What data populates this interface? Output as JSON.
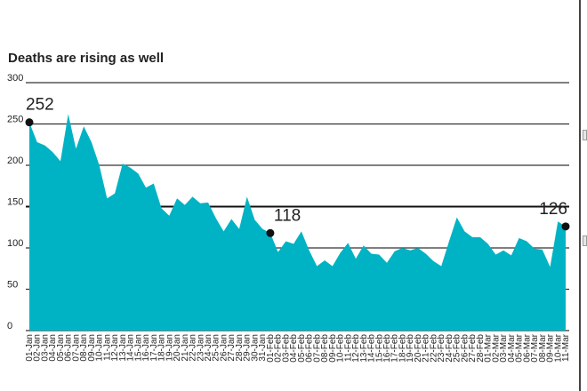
{
  "chart_data": {
    "type": "area",
    "title": "Deaths are rising as well",
    "xlabel": "",
    "ylabel": "",
    "ylim": [
      0,
      300
    ],
    "yticks": [
      0,
      50,
      100,
      150,
      200,
      250,
      300
    ],
    "grid": "horizontal",
    "legend": "none",
    "colors": {
      "fill": "#00b3c4",
      "grid_major": "#111111",
      "grid_minor": "#333333",
      "text": "#222222"
    },
    "x": [
      "01-Jan",
      "02-Jan",
      "03-Jan",
      "04-Jan",
      "05-Jan",
      "06-Jan",
      "07-Jan",
      "08-Jan",
      "09-Jan",
      "10-Jan",
      "11-Jan",
      "12-Jan",
      "13-Jan",
      "14-Jan",
      "15-Jan",
      "16-Jan",
      "17-Jan",
      "18-Jan",
      "19-Jan",
      "20-Jan",
      "21-Jan",
      "22-Jan",
      "23-Jan",
      "24-Jan",
      "25-Jan",
      "26-Jan",
      "27-Jan",
      "28-Jan",
      "29-Jan",
      "30-Jan",
      "31-Jan",
      "01-Feb",
      "02-Feb",
      "03-Feb",
      "04-Feb",
      "05-Feb",
      "06-Feb",
      "07-Feb",
      "08-Feb",
      "09-Feb",
      "10-Feb",
      "11-Feb",
      "12-Feb",
      "13-Feb",
      "14-Feb",
      "15-Feb",
      "16-Feb",
      "17-Feb",
      "18-Feb",
      "19-Feb",
      "20-Feb",
      "21-Feb",
      "22-Feb",
      "23-Feb",
      "24-Feb",
      "25-Feb",
      "26-Feb",
      "27-Feb",
      "28-Feb",
      "01-Mar",
      "02-Mar",
      "03-Mar",
      "04-Mar",
      "05-Mar",
      "06-Mar",
      "07-Mar",
      "08-Mar",
      "09-Mar",
      "10-Mar",
      "11-Mar"
    ],
    "values": [
      252,
      228,
      224,
      216,
      205,
      262,
      220,
      247,
      228,
      200,
      160,
      166,
      202,
      197,
      190,
      173,
      178,
      148,
      139,
      160,
      152,
      162,
      154,
      155,
      136,
      120,
      135,
      123,
      162,
      134,
      123,
      118,
      95,
      108,
      105,
      120,
      97,
      78,
      85,
      78,
      94,
      106,
      87,
      103,
      93,
      92,
      82,
      96,
      100,
      97,
      100,
      93,
      84,
      78,
      108,
      137,
      120,
      113,
      113,
      105,
      92,
      97,
      91,
      112,
      108,
      99,
      98,
      77,
      132,
      126
    ],
    "tick_labels": [
      "01-Jan",
      "02-Jan",
      "03-Jan",
      "04-Jan",
      "05-Jan",
      "06-Jan",
      "07-Jan",
      "08-Jan",
      "09-Jan",
      "10-Jan",
      "11-Jan",
      "12-Jan",
      "13-Jan",
      "14-Jan",
      "15-Jan",
      "16-Jan",
      "17-Jan",
      "18-Jan",
      "19-Jan",
      "20-Jan",
      "21-Jan",
      "22-Jan",
      "23-Jan",
      "24-Jan",
      "25-Jan",
      "26-Jan",
      "27-Jan",
      "28-Jan",
      "29-Jan",
      "30-Jan",
      "31-Jan",
      "01-Feb",
      "02-Feb",
      "03-Feb",
      "04-Feb",
      "05-Feb",
      "06-Feb",
      "07-Feb",
      "08-Feb",
      "09-Feb",
      "10-Feb",
      "11-Feb",
      "12-Feb",
      "13-Feb",
      "14-Feb",
      "15-Feb",
      "16-Feb",
      "17-Feb",
      "18-Feb",
      "19-Feb",
      "20-Feb",
      "21-Feb",
      "22-Feb",
      "23-Feb",
      "24-Feb",
      "25-Feb",
      "26-Feb",
      "27-Feb",
      "28-Feb",
      "01-Mar",
      "02-Mar",
      "03-Mar",
      "04-Mar",
      "05-Mar",
      "06-Mar",
      "07-Mar",
      "08-Mar",
      "09-Mar",
      "10-Mar",
      "11-Mar"
    ],
    "annotations": [
      {
        "x": "01-Jan",
        "value": 252,
        "label": "252"
      },
      {
        "x": "01-Feb",
        "value": 118,
        "label": "118"
      },
      {
        "x": "11-Mar",
        "value": 126,
        "label": "126"
      }
    ]
  }
}
